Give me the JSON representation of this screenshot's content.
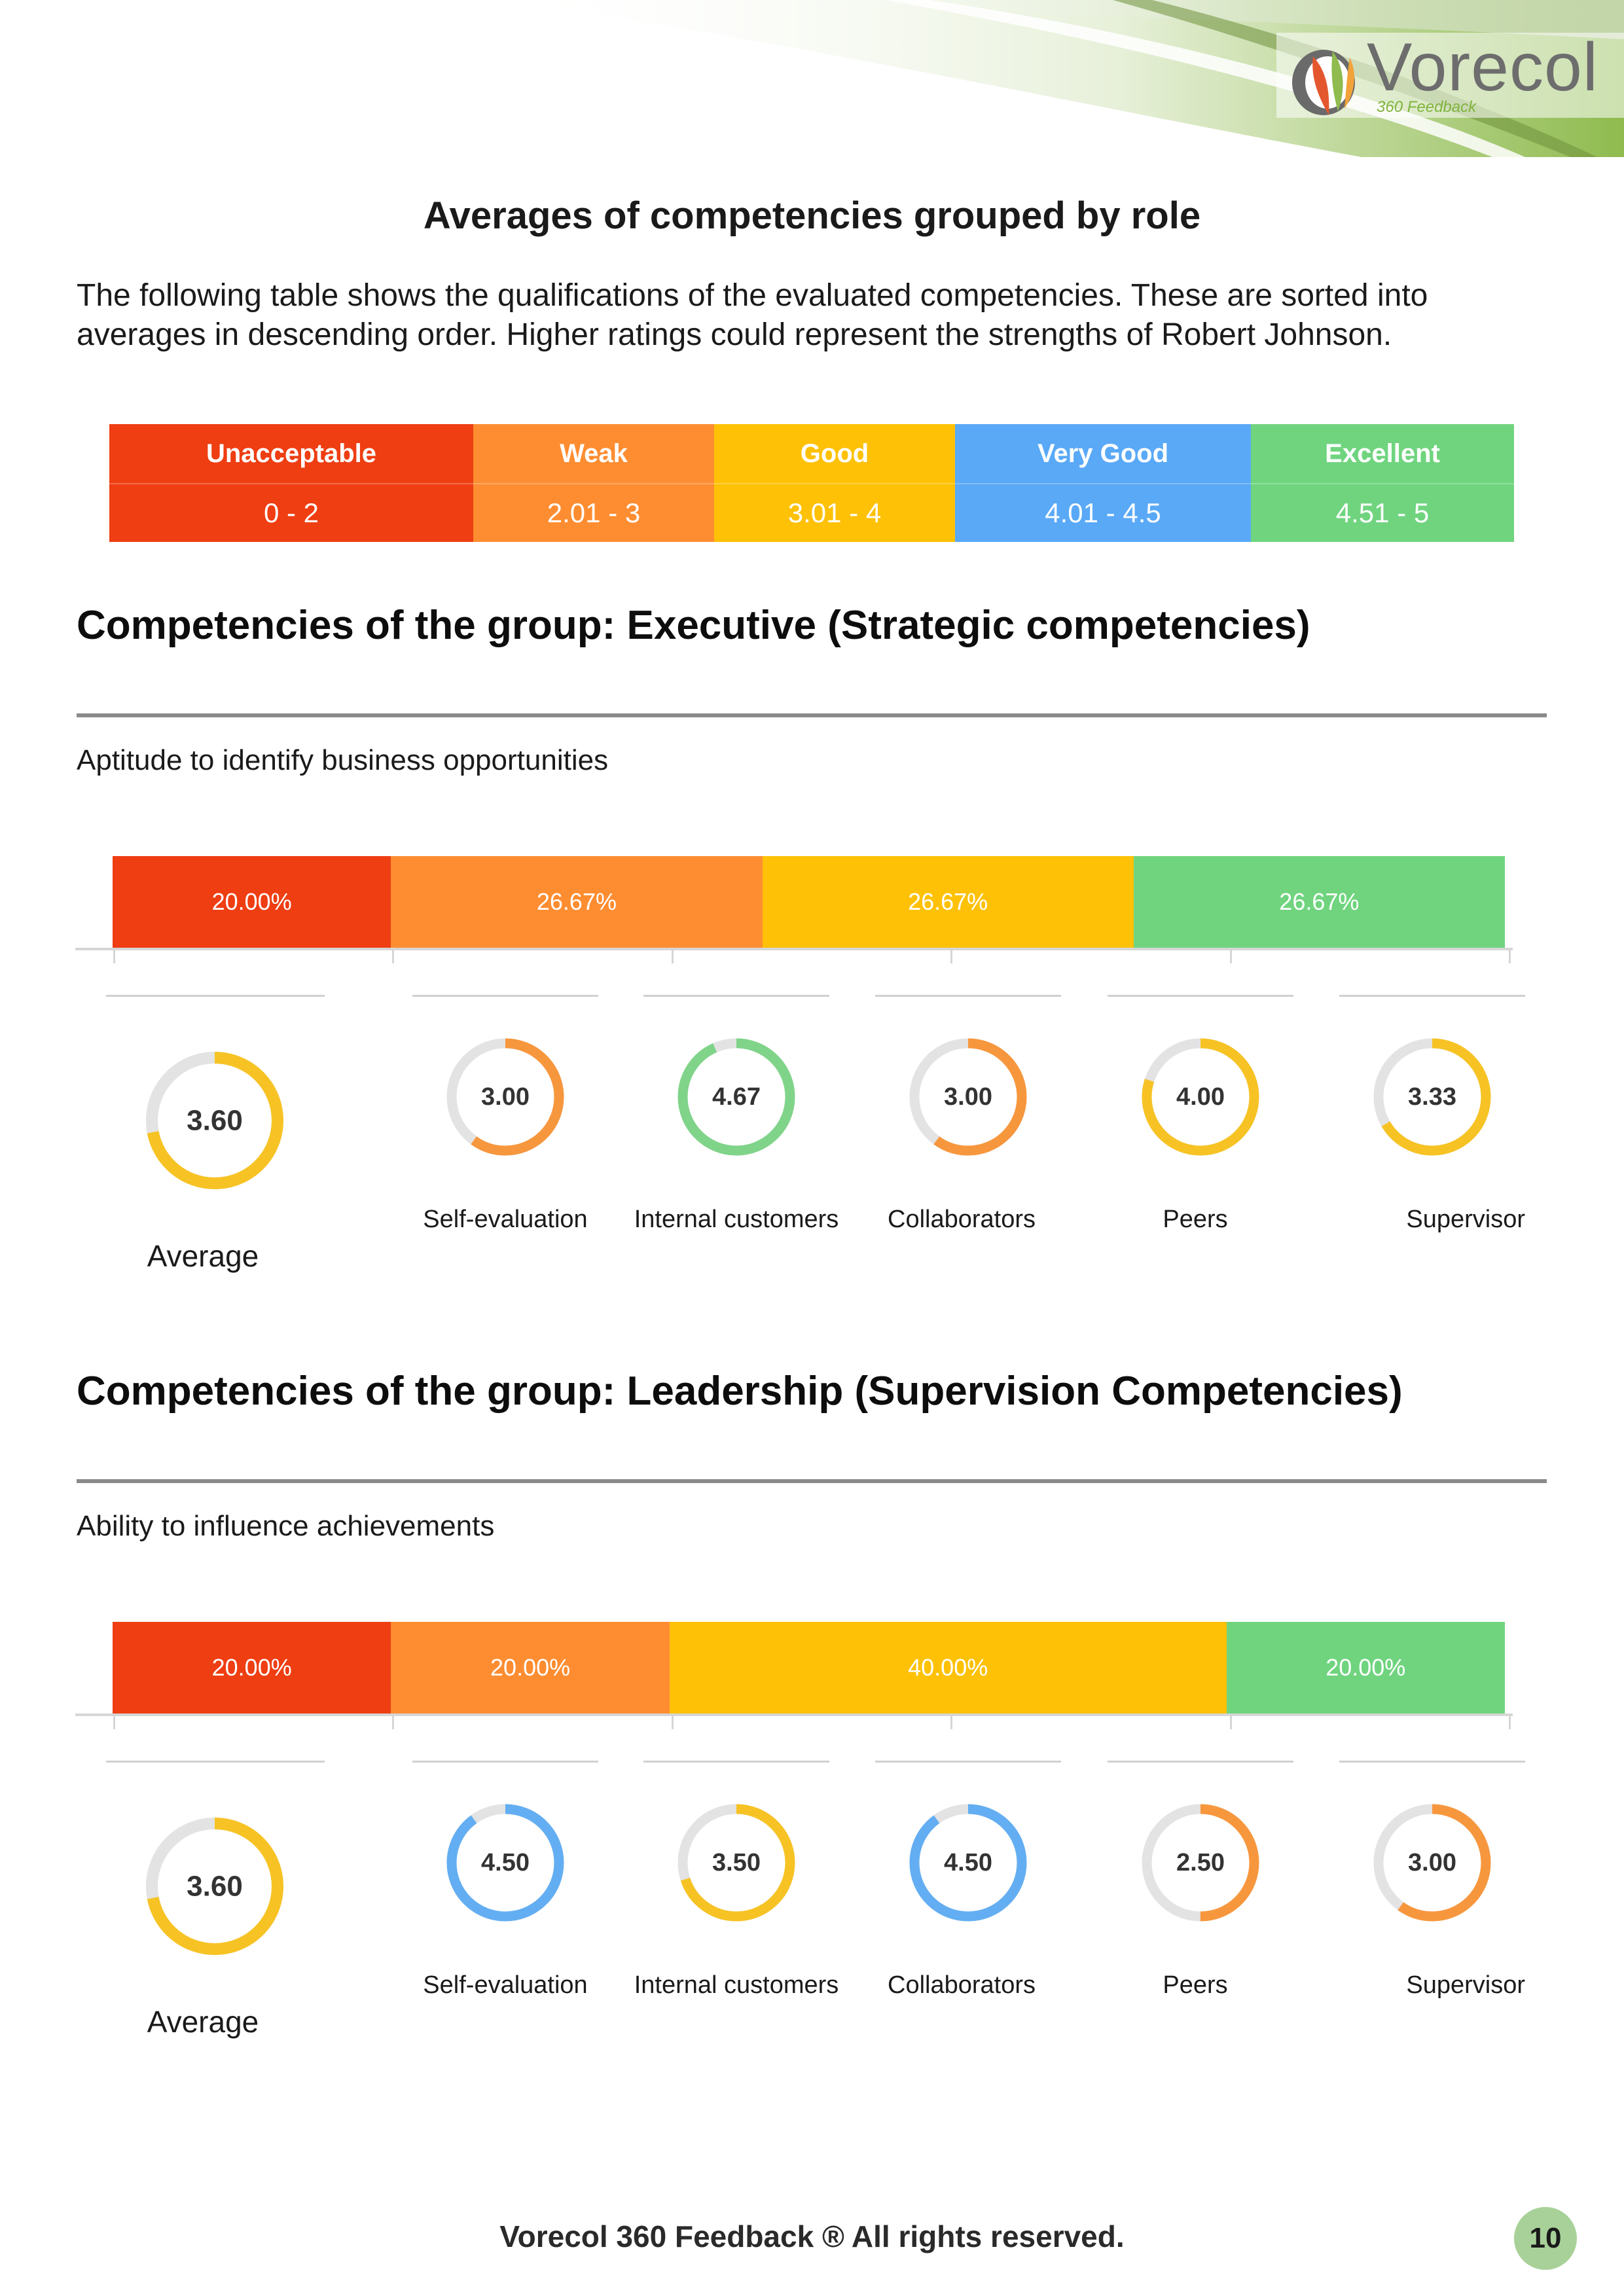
{
  "header": {
    "logo_text": "Vorecol",
    "logo_subtitle": "360 Feedback"
  },
  "page": {
    "title": "Averages of competencies grouped by role",
    "intro": "The following table shows the qualifications of the evaluated competencies. These are sorted into averages in descending order. Higher ratings could represent the strengths of Robert Johnson."
  },
  "legend": [
    {
      "label": "Unacceptable",
      "range": "0  -  2",
      "color": "#ee3e12"
    },
    {
      "label": "Weak",
      "range": "2.01  -  3",
      "color": "#fe8d31"
    },
    {
      "label": "Good",
      "range": "3.01  -  4",
      "color": "#fec106"
    },
    {
      "label": "Very Good",
      "range": "4.01  -  4.5",
      "color": "#59a9f7"
    },
    {
      "label": "Excellent",
      "range": "4.51  -  5",
      "color": "#70d47f"
    }
  ],
  "groups": [
    {
      "title": "Competencies of the group: Executive (Strategic competencies)",
      "competency": "Aptitude to identify business opportunities",
      "distribution": [
        {
          "value": 20.0,
          "label": "20.00%",
          "color": "#ee3e12"
        },
        {
          "value": 26.67,
          "label": "26.67%",
          "color": "#fe8d31"
        },
        {
          "value": 26.67,
          "label": "26.67%",
          "color": "#fec106"
        },
        {
          "value": 26.67,
          "label": "26.67%",
          "color": "#70d47f"
        }
      ],
      "average": {
        "value": 3.6,
        "label": "3.60",
        "name": "Average",
        "color": "#f7c324"
      },
      "ratings": [
        {
          "name": "Self-evaluation",
          "value": 3.0,
          "label": "3.00",
          "color": "#f7973d"
        },
        {
          "name": "Internal customers",
          "value": 4.67,
          "label": "4.67",
          "color": "#80d48a"
        },
        {
          "name": "Collaborators",
          "value": 3.0,
          "label": "3.00",
          "color": "#f7973d"
        },
        {
          "name": "Peers",
          "value": 4.0,
          "label": "4.00",
          "color": "#f7c324"
        },
        {
          "name": "Supervisor",
          "value": 3.33,
          "label": "3.33",
          "color": "#f7c324"
        }
      ]
    },
    {
      "title": "Competencies of the group: Leadership (Supervision Competencies)",
      "competency": "Ability to influence achievements",
      "distribution": [
        {
          "value": 20.0,
          "label": "20.00%",
          "color": "#ee3e12"
        },
        {
          "value": 20.0,
          "label": "20.00%",
          "color": "#fe8d31"
        },
        {
          "value": 40.0,
          "label": "40.00%",
          "color": "#fec106"
        },
        {
          "value": 20.0,
          "label": "20.00%",
          "color": "#70d47f"
        }
      ],
      "average": {
        "value": 3.6,
        "label": "3.60",
        "name": "Average",
        "color": "#f7c324"
      },
      "ratings": [
        {
          "name": "Self-evaluation",
          "value": 4.5,
          "label": "4.50",
          "color": "#63aef2"
        },
        {
          "name": "Internal customers",
          "value": 3.5,
          "label": "3.50",
          "color": "#f7c324"
        },
        {
          "name": "Collaborators",
          "value": 4.5,
          "label": "4.50",
          "color": "#63aef2"
        },
        {
          "name": "Peers",
          "value": 2.5,
          "label": "2.50",
          "color": "#f7973d"
        },
        {
          "name": "Supervisor",
          "value": 3.0,
          "label": "3.00",
          "color": "#f7973d"
        }
      ]
    }
  ],
  "footer": {
    "text": "Vorecol 360 Feedback ® All rights reserved.",
    "page_number": "10"
  }
}
